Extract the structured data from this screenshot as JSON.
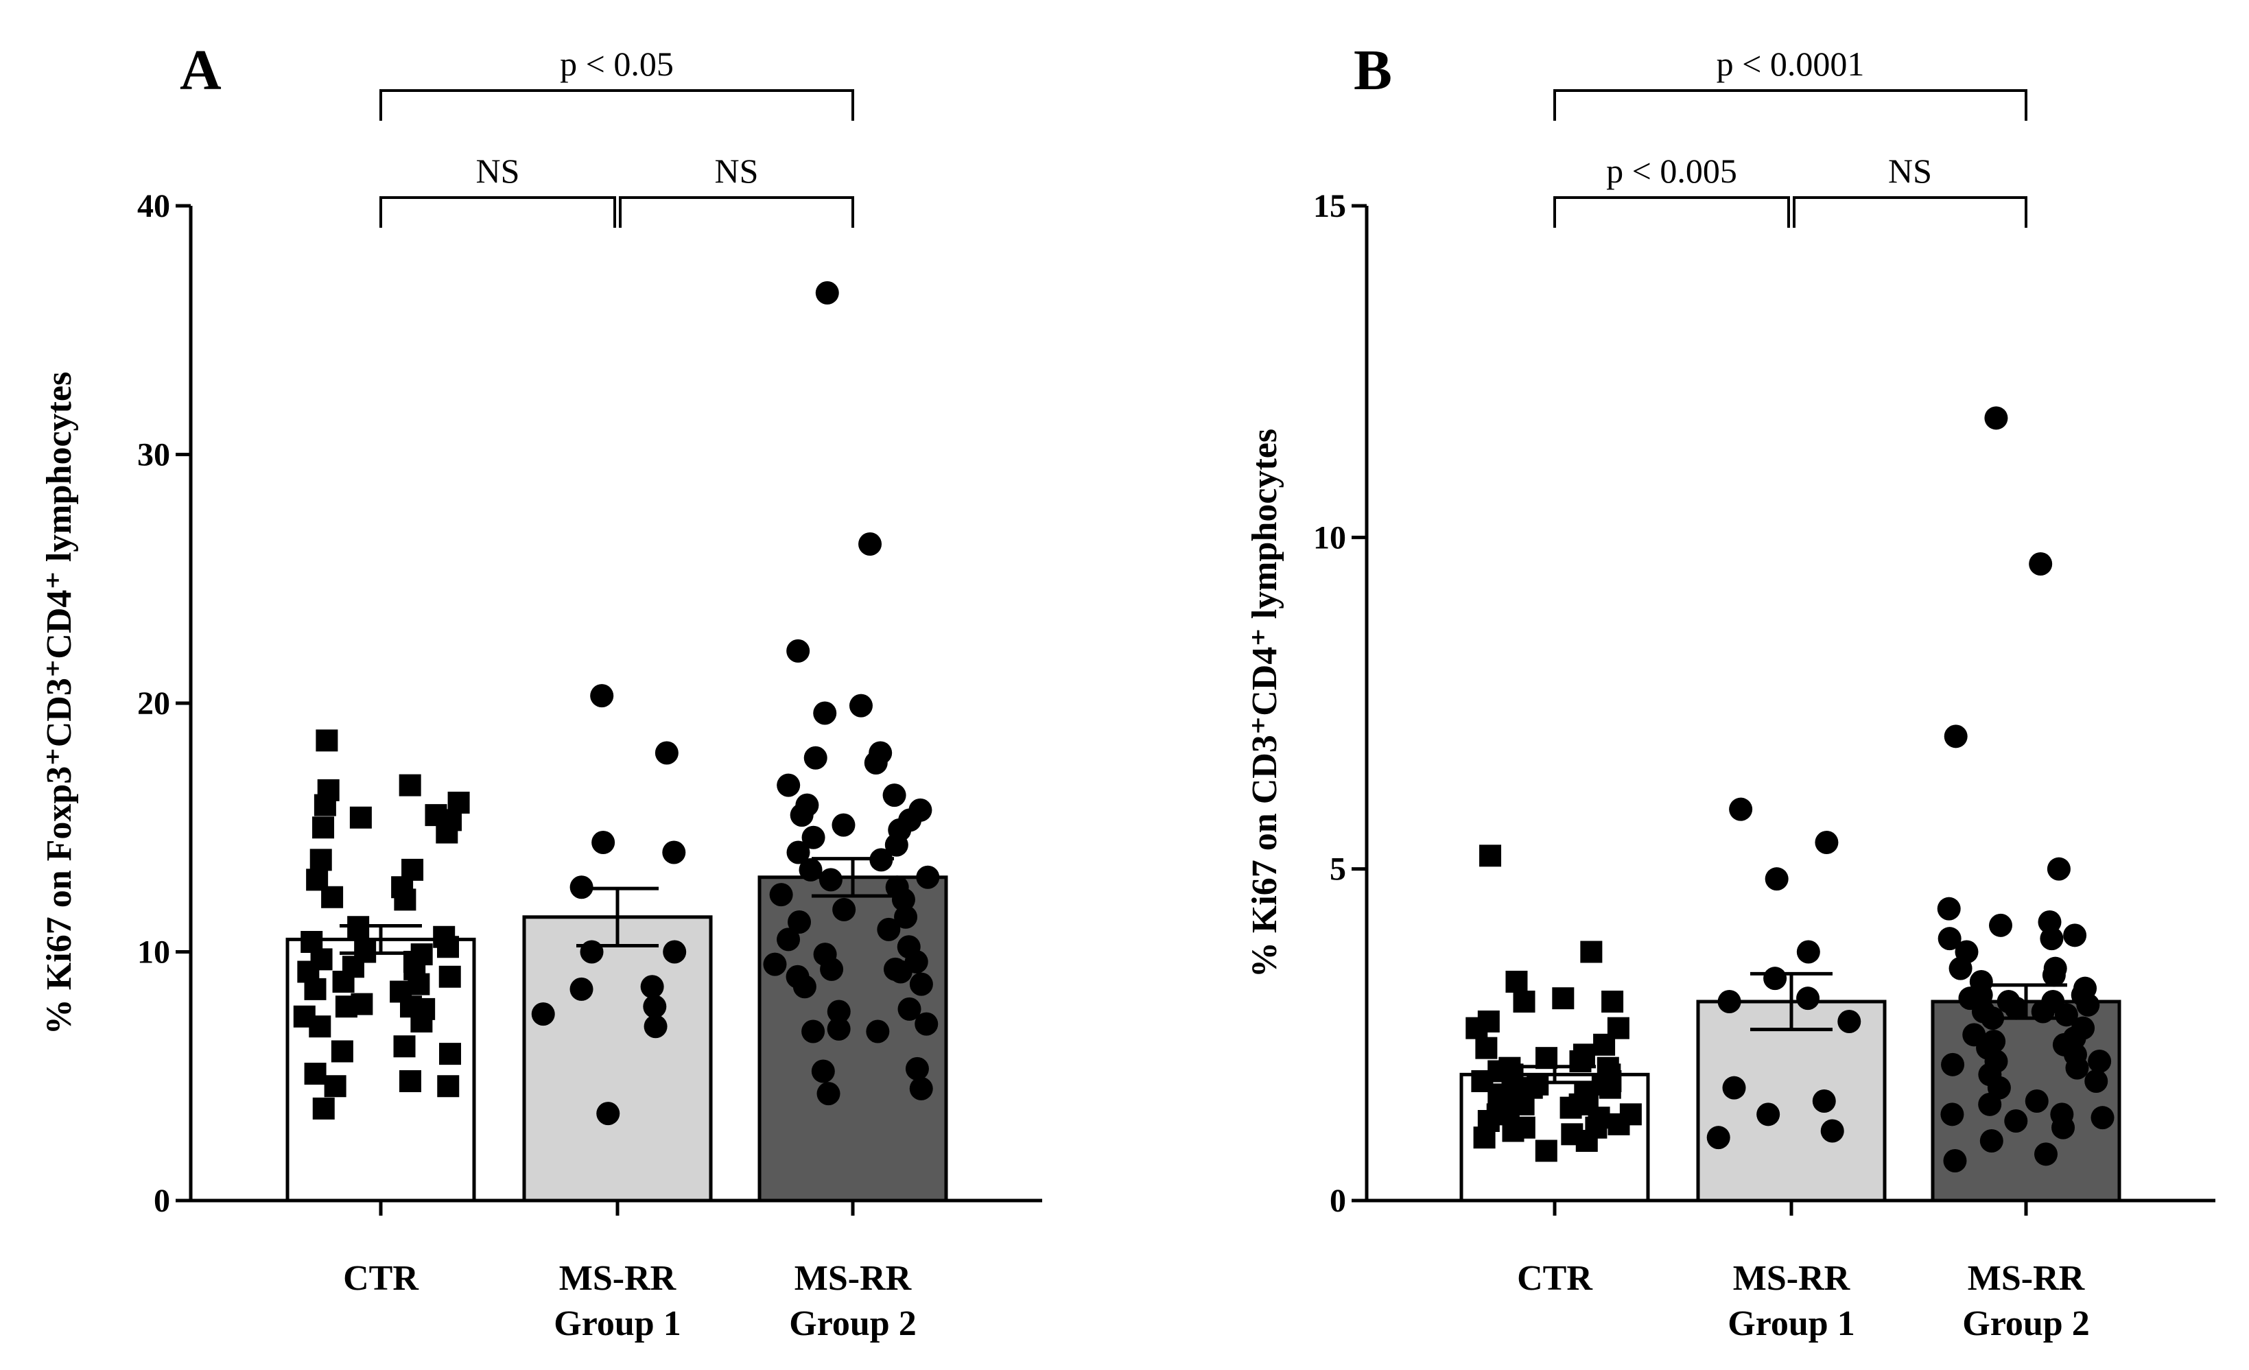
{
  "chart_data": [
    {
      "type": "bar",
      "panel": "A",
      "ylabel": "% Ki67 on Foxp3⁺CD3⁺CD4⁺ lymphocytes",
      "ylim": [
        0,
        40
      ],
      "yticks": [
        "0",
        "10",
        "20",
        "30",
        "40"
      ],
      "ytick_values": [
        0,
        10,
        20,
        30,
        40
      ],
      "categories": [
        {
          "line1": "CTR",
          "line2": ""
        },
        {
          "line1": "MS-RR",
          "line2": "Group 1"
        },
        {
          "line1": "MS-RR",
          "line2": "Group 2"
        }
      ],
      "bar_colors": [
        "#ffffff",
        "#d3d3d3",
        "#5a5a5a"
      ],
      "marker_shapes": [
        "square",
        "circle",
        "circle"
      ],
      "means": [
        10.5,
        11.4,
        13.0
      ],
      "sem": [
        0.55,
        1.15,
        0.75
      ],
      "points": [
        [
          18.5,
          16.7,
          16.5,
          16.0,
          15.9,
          15.5,
          15.4,
          15.3,
          15.0,
          14.8,
          13.7,
          13.3,
          12.9,
          12.6,
          12.2,
          12.1,
          11.0,
          10.6,
          10.4,
          10.2,
          10.0,
          9.9,
          9.7,
          9.6,
          9.4,
          9.3,
          9.2,
          9.0,
          8.8,
          8.7,
          8.5,
          8.4,
          7.9,
          7.8,
          7.8,
          7.7,
          7.4,
          7.2,
          7.0,
          6.2,
          6.0,
          5.9,
          5.1,
          4.8,
          4.6,
          4.6,
          3.7
        ],
        [
          20.3,
          18.0,
          14.4,
          14.0,
          12.6,
          10.0,
          10.0,
          8.6,
          8.5,
          7.8,
          7.5,
          7.0,
          3.5
        ],
        [
          36.5,
          26.4,
          22.1,
          19.9,
          19.6,
          18.0,
          17.8,
          17.6,
          16.7,
          16.3,
          15.9,
          15.7,
          15.5,
          15.3,
          15.1,
          14.9,
          14.6,
          14.3,
          14.0,
          13.7,
          13.3,
          13.0,
          12.9,
          12.6,
          12.3,
          12.1,
          11.7,
          11.4,
          11.2,
          10.9,
          10.5,
          10.2,
          9.9,
          9.6,
          9.5,
          9.3,
          9.3,
          9.2,
          9.0,
          8.7,
          8.6,
          7.7,
          7.6,
          7.1,
          6.9,
          6.8,
          6.8,
          5.3,
          5.2,
          4.5,
          4.3
        ]
      ],
      "brackets": [
        {
          "from": 0,
          "to": 2,
          "level": "upper",
          "label": "p < 0.05"
        },
        {
          "from": 0,
          "to": 1,
          "level": "lower",
          "label": "NS"
        },
        {
          "from": 1,
          "to": 2,
          "level": "lower",
          "label": "NS"
        }
      ]
    },
    {
      "type": "bar",
      "panel": "B",
      "ylabel": "% Ki67 on CD3⁺CD4⁺ lymphocytes",
      "ylim": [
        0,
        15
      ],
      "yticks": [
        "0",
        "5",
        "10",
        "15"
      ],
      "ytick_values": [
        0,
        5,
        10,
        15
      ],
      "categories": [
        {
          "line1": "CTR",
          "line2": ""
        },
        {
          "line1": "MS-RR",
          "line2": "Group 1"
        },
        {
          "line1": "MS-RR",
          "line2": "Group 2"
        }
      ],
      "bar_colors": [
        "#ffffff",
        "#d3d3d3",
        "#5a5a5a"
      ],
      "marker_shapes": [
        "square",
        "circle",
        "circle"
      ],
      "means": [
        1.9,
        3.0,
        3.0
      ],
      "sem": [
        0.12,
        0.42,
        0.25
      ],
      "points": [
        [
          5.2,
          3.75,
          3.3,
          3.05,
          3.0,
          3.0,
          2.7,
          2.6,
          2.6,
          2.35,
          2.3,
          2.2,
          2.15,
          2.1,
          2.0,
          2.0,
          1.95,
          1.9,
          1.9,
          1.85,
          1.8,
          1.8,
          1.75,
          1.75,
          1.7,
          1.7,
          1.65,
          1.6,
          1.6,
          1.55,
          1.5,
          1.45,
          1.45,
          1.4,
          1.35,
          1.3,
          1.3,
          1.25,
          1.2,
          1.15,
          1.1,
          1.1,
          1.05,
          1.0,
          0.95,
          0.9,
          0.75
        ],
        [
          5.9,
          5.4,
          4.85,
          3.75,
          3.35,
          3.05,
          3.0,
          2.7,
          1.7,
          1.5,
          1.3,
          1.05,
          0.95
        ],
        [
          11.8,
          9.6,
          7.0,
          5.0,
          4.4,
          4.2,
          4.15,
          4.0,
          3.95,
          3.95,
          3.75,
          3.5,
          3.5,
          3.4,
          3.3,
          3.2,
          3.1,
          3.1,
          3.05,
          3.0,
          3.0,
          2.95,
          2.9,
          2.85,
          2.85,
          2.8,
          2.75,
          2.6,
          2.5,
          2.45,
          2.4,
          2.35,
          2.3,
          2.2,
          2.1,
          2.1,
          2.05,
          2.0,
          1.9,
          1.8,
          1.7,
          1.5,
          1.45,
          1.3,
          1.3,
          1.25,
          1.2,
          1.1,
          0.9,
          0.7,
          0.6
        ]
      ],
      "brackets": [
        {
          "from": 0,
          "to": 2,
          "level": "upper",
          "label": "p < 0.0001"
        },
        {
          "from": 0,
          "to": 1,
          "level": "lower",
          "label": "p < 0.005"
        },
        {
          "from": 1,
          "to": 2,
          "level": "lower",
          "label": "NS"
        }
      ]
    }
  ]
}
